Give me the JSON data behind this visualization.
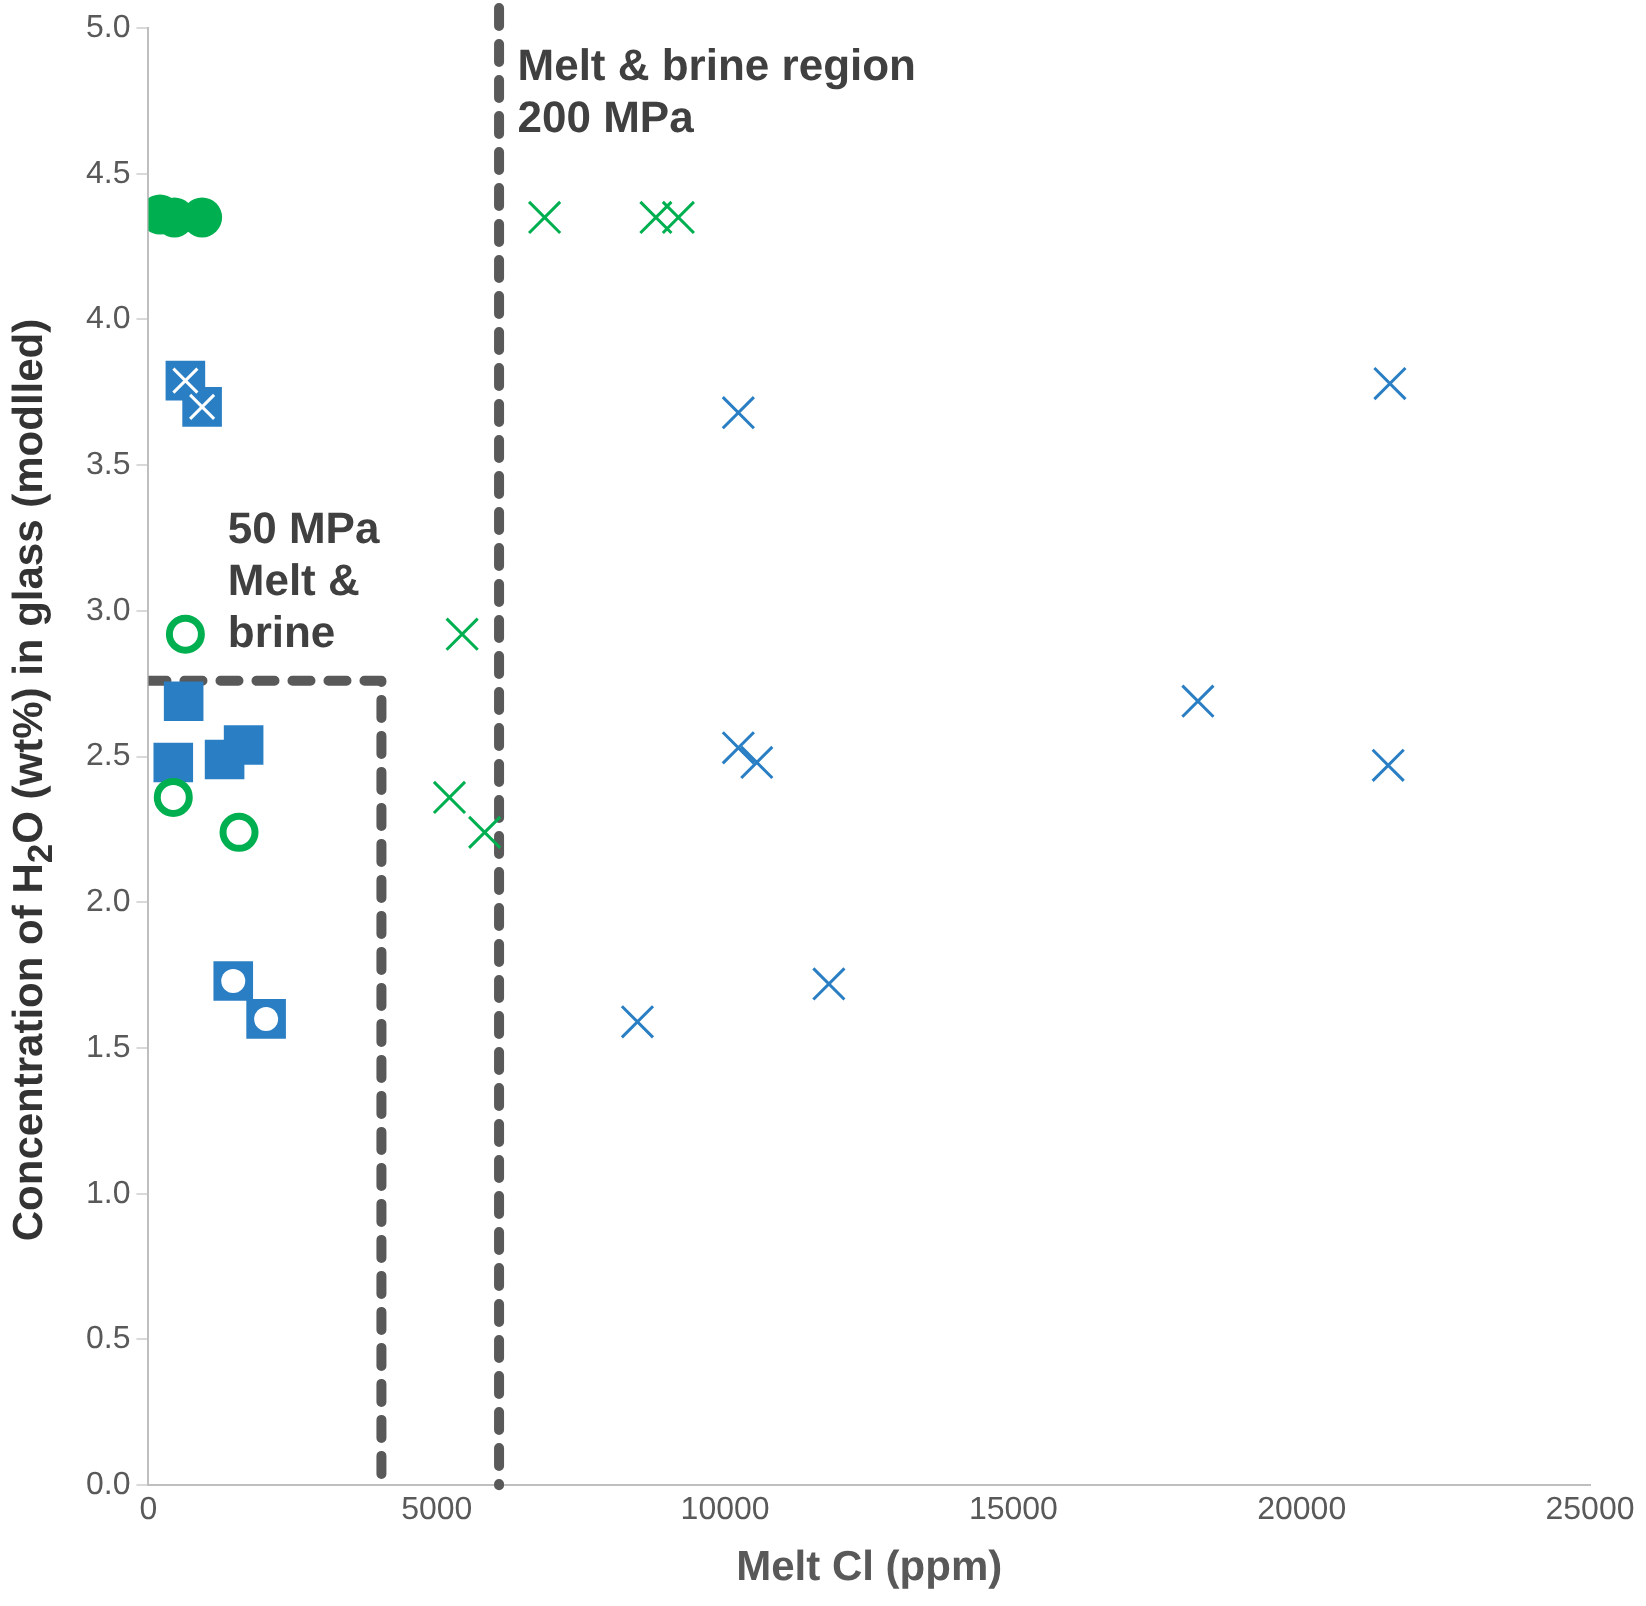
{
  "chart_data": {
    "type": "scatter",
    "xlabel": "Melt Cl (ppm)",
    "ylabel": "Concentration of H$_{2}$O (wt%) in glass (modlled)",
    "xlim": [
      0,
      25000
    ],
    "xticks": [
      0,
      5000,
      10000,
      15000,
      20000,
      25000
    ],
    "ylim": [
      0,
      5
    ],
    "yticks": [
      {
        "value": 0,
        "label": "0.0"
      },
      {
        "value": 0.5,
        "label": "0.5"
      },
      {
        "value": 1,
        "label": "1.0"
      },
      {
        "value": 1.5,
        "label": "1.5"
      },
      {
        "value": 2,
        "label": "2.0"
      },
      {
        "value": 2.5,
        "label": "2.5"
      },
      {
        "value": 3,
        "label": "3.0"
      },
      {
        "value": 3.5,
        "label": "3.5"
      },
      {
        "value": 4,
        "label": "4.0"
      },
      {
        "value": 4.5,
        "label": "4.5"
      },
      {
        "value": 5,
        "label": "5.0"
      }
    ],
    "grid": false,
    "legend": false,
    "series": [
      {
        "color": "#00b050",
        "marker": "circle",
        "x": [
          200,
          450,
          930
        ],
        "values": [
          4.36,
          4.35,
          4.35
        ]
      },
      {
        "color": "#2a7fc4",
        "marker": "square",
        "x": [
          640,
          930
        ],
        "values": [
          3.79,
          3.7
        ]
      },
      {
        "color": "#00b050",
        "marker": "circle",
        "x": [
          640,
          430,
          1570
        ],
        "values": [
          2.92,
          2.36,
          2.24
        ]
      },
      {
        "color": "#2a7fc4",
        "marker": "square",
        "x": [
          610,
          430,
          1320,
          1650
        ],
        "values": [
          2.69,
          2.48,
          2.49,
          2.54
        ]
      },
      {
        "color": "#2a7fc4",
        "marker": "square",
        "x": [
          1470,
          2040
        ],
        "values": [
          1.73,
          1.6
        ]
      },
      {
        "color": "#00b050",
        "marker": "cross",
        "x": [
          6870,
          8800,
          9190,
          5440,
          5220,
          5830
        ],
        "values": [
          4.35,
          4.35,
          4.35,
          2.92,
          2.36,
          2.24
        ]
      },
      {
        "color": "#2a7fc4",
        "marker": "cross",
        "x": [
          10230,
          21530,
          10230,
          10550,
          18200,
          21500,
          8480,
          11800
        ],
        "values": [
          3.68,
          3.78,
          2.53,
          2.48,
          2.69,
          2.47,
          1.59,
          1.72
        ]
      },
      {
        "type": "line",
        "color": "#595959",
        "line_style": "dashed",
        "marker": "none",
        "x": [
          0,
          4040,
          4040
        ],
        "values": [
          2.76,
          2.76,
          0
        ]
      }
    ],
    "ref_lines": [
      {
        "axis": "x",
        "value": 6080,
        "color": "#595959",
        "line_style": "dashed"
      }
    ],
    "annotations": [
      "Melt & brine region\n200 MPa",
      "50 MPa\nMelt &\nbrine"
    ]
  }
}
